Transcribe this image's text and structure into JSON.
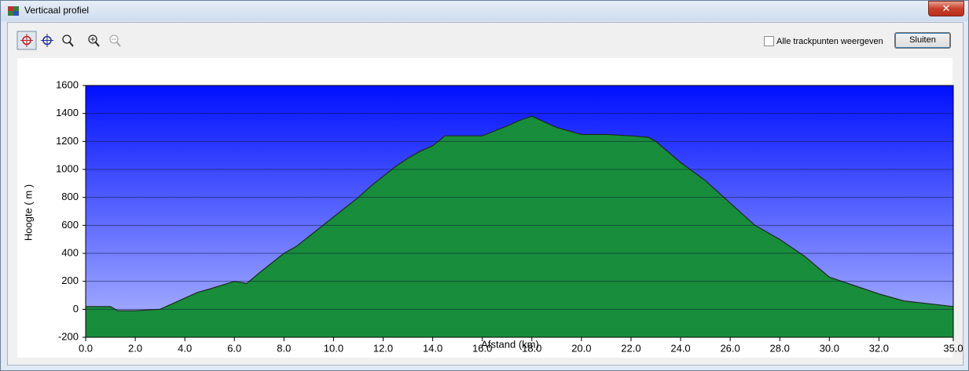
{
  "window": {
    "title": "Verticaal profiel",
    "checkbox_label": "Alle trackpunten weergeven",
    "button_label": "Sluiten"
  },
  "chart_data": {
    "type": "area",
    "xlabel": "Afstand  (km)",
    "ylabel": "Hoogte ( m )",
    "x": [
      0,
      1,
      1.3,
      2,
      3,
      3.5,
      4,
      4.5,
      5,
      6,
      6.5,
      7,
      8,
      8.5,
      9,
      10,
      10.5,
      11,
      11.5,
      12,
      12.5,
      13,
      13.5,
      14,
      14.5,
      15,
      16,
      17,
      17.5,
      18,
      18.5,
      19,
      20,
      21,
      22,
      22.7,
      23,
      24,
      25,
      26,
      27,
      28,
      29,
      30,
      31,
      32,
      33,
      34,
      35
    ],
    "values": [
      20,
      20,
      -10,
      -10,
      0,
      40,
      80,
      120,
      145,
      200,
      185,
      260,
      400,
      450,
      520,
      660,
      730,
      800,
      880,
      950,
      1020,
      1080,
      1130,
      1170,
      1240,
      1240,
      1240,
      1310,
      1350,
      1380,
      1340,
      1300,
      1250,
      1250,
      1240,
      1230,
      1200,
      1050,
      920,
      760,
      600,
      500,
      380,
      230,
      170,
      110,
      60,
      40,
      20
    ],
    "color": "#1c9a3c",
    "line_color": "#1e2a1e",
    "grid": true,
    "xlim": [
      0,
      35
    ],
    "ylim": [
      -200,
      1600
    ],
    "xticks": [
      {
        "value": 0,
        "label": "0.0"
      },
      {
        "value": 2,
        "label": "2.0"
      },
      {
        "value": 4,
        "label": "4.0"
      },
      {
        "value": 6,
        "label": "6.0"
      },
      {
        "value": 8,
        "label": "8.0"
      },
      {
        "value": 10,
        "label": "10.0"
      },
      {
        "value": 12,
        "label": "12.0"
      },
      {
        "value": 14,
        "label": "14.0"
      },
      {
        "value": 16,
        "label": "16.0"
      },
      {
        "value": 18,
        "label": "18.0"
      },
      {
        "value": 20,
        "label": "20.0"
      },
      {
        "value": 22,
        "label": "22.0"
      },
      {
        "value": 24,
        "label": "24.0"
      },
      {
        "value": 26,
        "label": "26.0"
      },
      {
        "value": 28,
        "label": "28.0"
      },
      {
        "value": 30,
        "label": "30.0"
      },
      {
        "value": 32,
        "label": "32.0"
      },
      {
        "value": 35,
        "label": "35.0"
      }
    ],
    "yticks": [
      -200,
      0,
      200,
      400,
      600,
      800,
      1000,
      1200,
      1400,
      1600
    ]
  }
}
